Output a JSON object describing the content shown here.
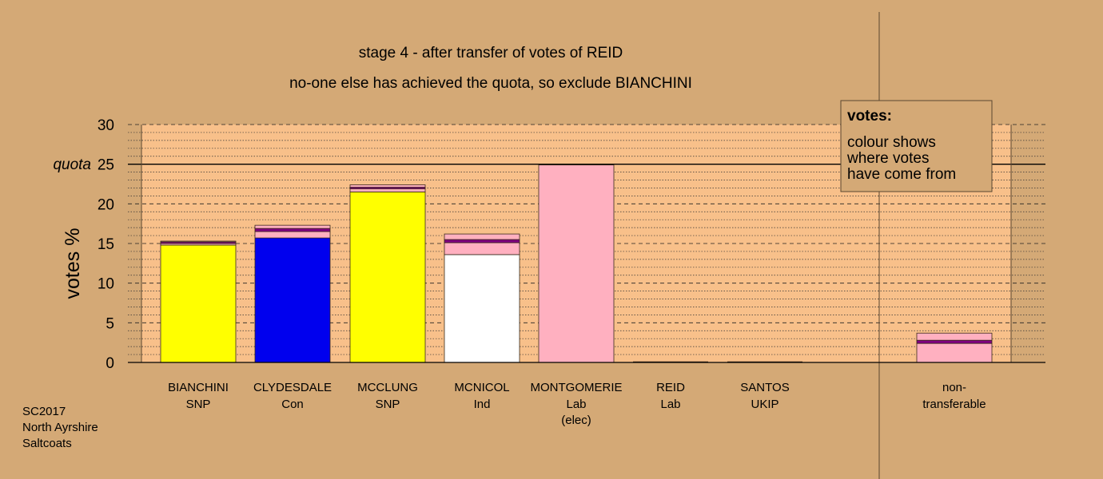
{
  "title": "stage 4 - after transfer of votes of REID",
  "subtitle": "no-one else has achieved the quota, so exclude BIANCHINI",
  "footer": [
    "SC2017",
    "North Ayrshire",
    "Saltcoats"
  ],
  "legend": {
    "heading": "votes:",
    "lines": [
      "colour shows",
      "where votes",
      "have come from"
    ]
  },
  "colors": {
    "background": "#d4a976",
    "plot": "#f8c08a",
    "SNP": "#ffff00",
    "Con": "#0000ee",
    "Ind": "#ffffff",
    "Lab": "#ffb0c0",
    "UKIP": "#800080"
  },
  "chart_data": {
    "type": "bar",
    "stacked": true,
    "ylabel": "votes %",
    "ylim": [
      0,
      30
    ],
    "yticks": [
      0,
      5,
      10,
      15,
      20,
      25,
      30
    ],
    "quota": 25,
    "quota_label": "quota",
    "grid": "dotted every 1, dashed every 5",
    "legend_placement": "top-right",
    "categories": [
      {
        "name": "BIANCHINI",
        "party": "SNP",
        "note": ""
      },
      {
        "name": "CLYDESDALE",
        "party": "Con",
        "note": ""
      },
      {
        "name": "MCCLUNG",
        "party": "SNP",
        "note": ""
      },
      {
        "name": "MCNICOL",
        "party": "Ind",
        "note": ""
      },
      {
        "name": "MONTGOMERIE",
        "party": "Lab",
        "note": "(elec)"
      },
      {
        "name": "REID",
        "party": "Lab",
        "note": ""
      },
      {
        "name": "SANTOS",
        "party": "UKIP",
        "note": ""
      },
      {
        "name": "non-",
        "party": "transferable",
        "note": ""
      }
    ],
    "stacks": [
      [
        {
          "source": "SNP",
          "value": 14.8
        },
        {
          "source": "Lab",
          "value": 0.2
        },
        {
          "source": "UKIP",
          "value": 0.2
        },
        {
          "source": "Lab",
          "value": 0.1
        }
      ],
      [
        {
          "source": "Con",
          "value": 15.7
        },
        {
          "source": "Lab",
          "value": 0.8
        },
        {
          "source": "UKIP",
          "value": 0.4
        },
        {
          "source": "Lab",
          "value": 0.4
        }
      ],
      [
        {
          "source": "SNP",
          "value": 21.5
        },
        {
          "source": "Lab",
          "value": 0.4
        },
        {
          "source": "UKIP",
          "value": 0.2
        },
        {
          "source": "Lab",
          "value": 0.3
        }
      ],
      [
        {
          "source": "Ind",
          "value": 13.6
        },
        {
          "source": "Lab",
          "value": 1.5
        },
        {
          "source": "UKIP",
          "value": 0.4
        },
        {
          "source": "Lab",
          "value": 0.7
        }
      ],
      [
        {
          "source": "Lab",
          "value": 24.9
        }
      ],
      [],
      [],
      [
        {
          "source": "Lab",
          "value": 2.4
        },
        {
          "source": "UKIP",
          "value": 0.4
        },
        {
          "source": "Lab",
          "value": 0.9
        }
      ]
    ]
  }
}
